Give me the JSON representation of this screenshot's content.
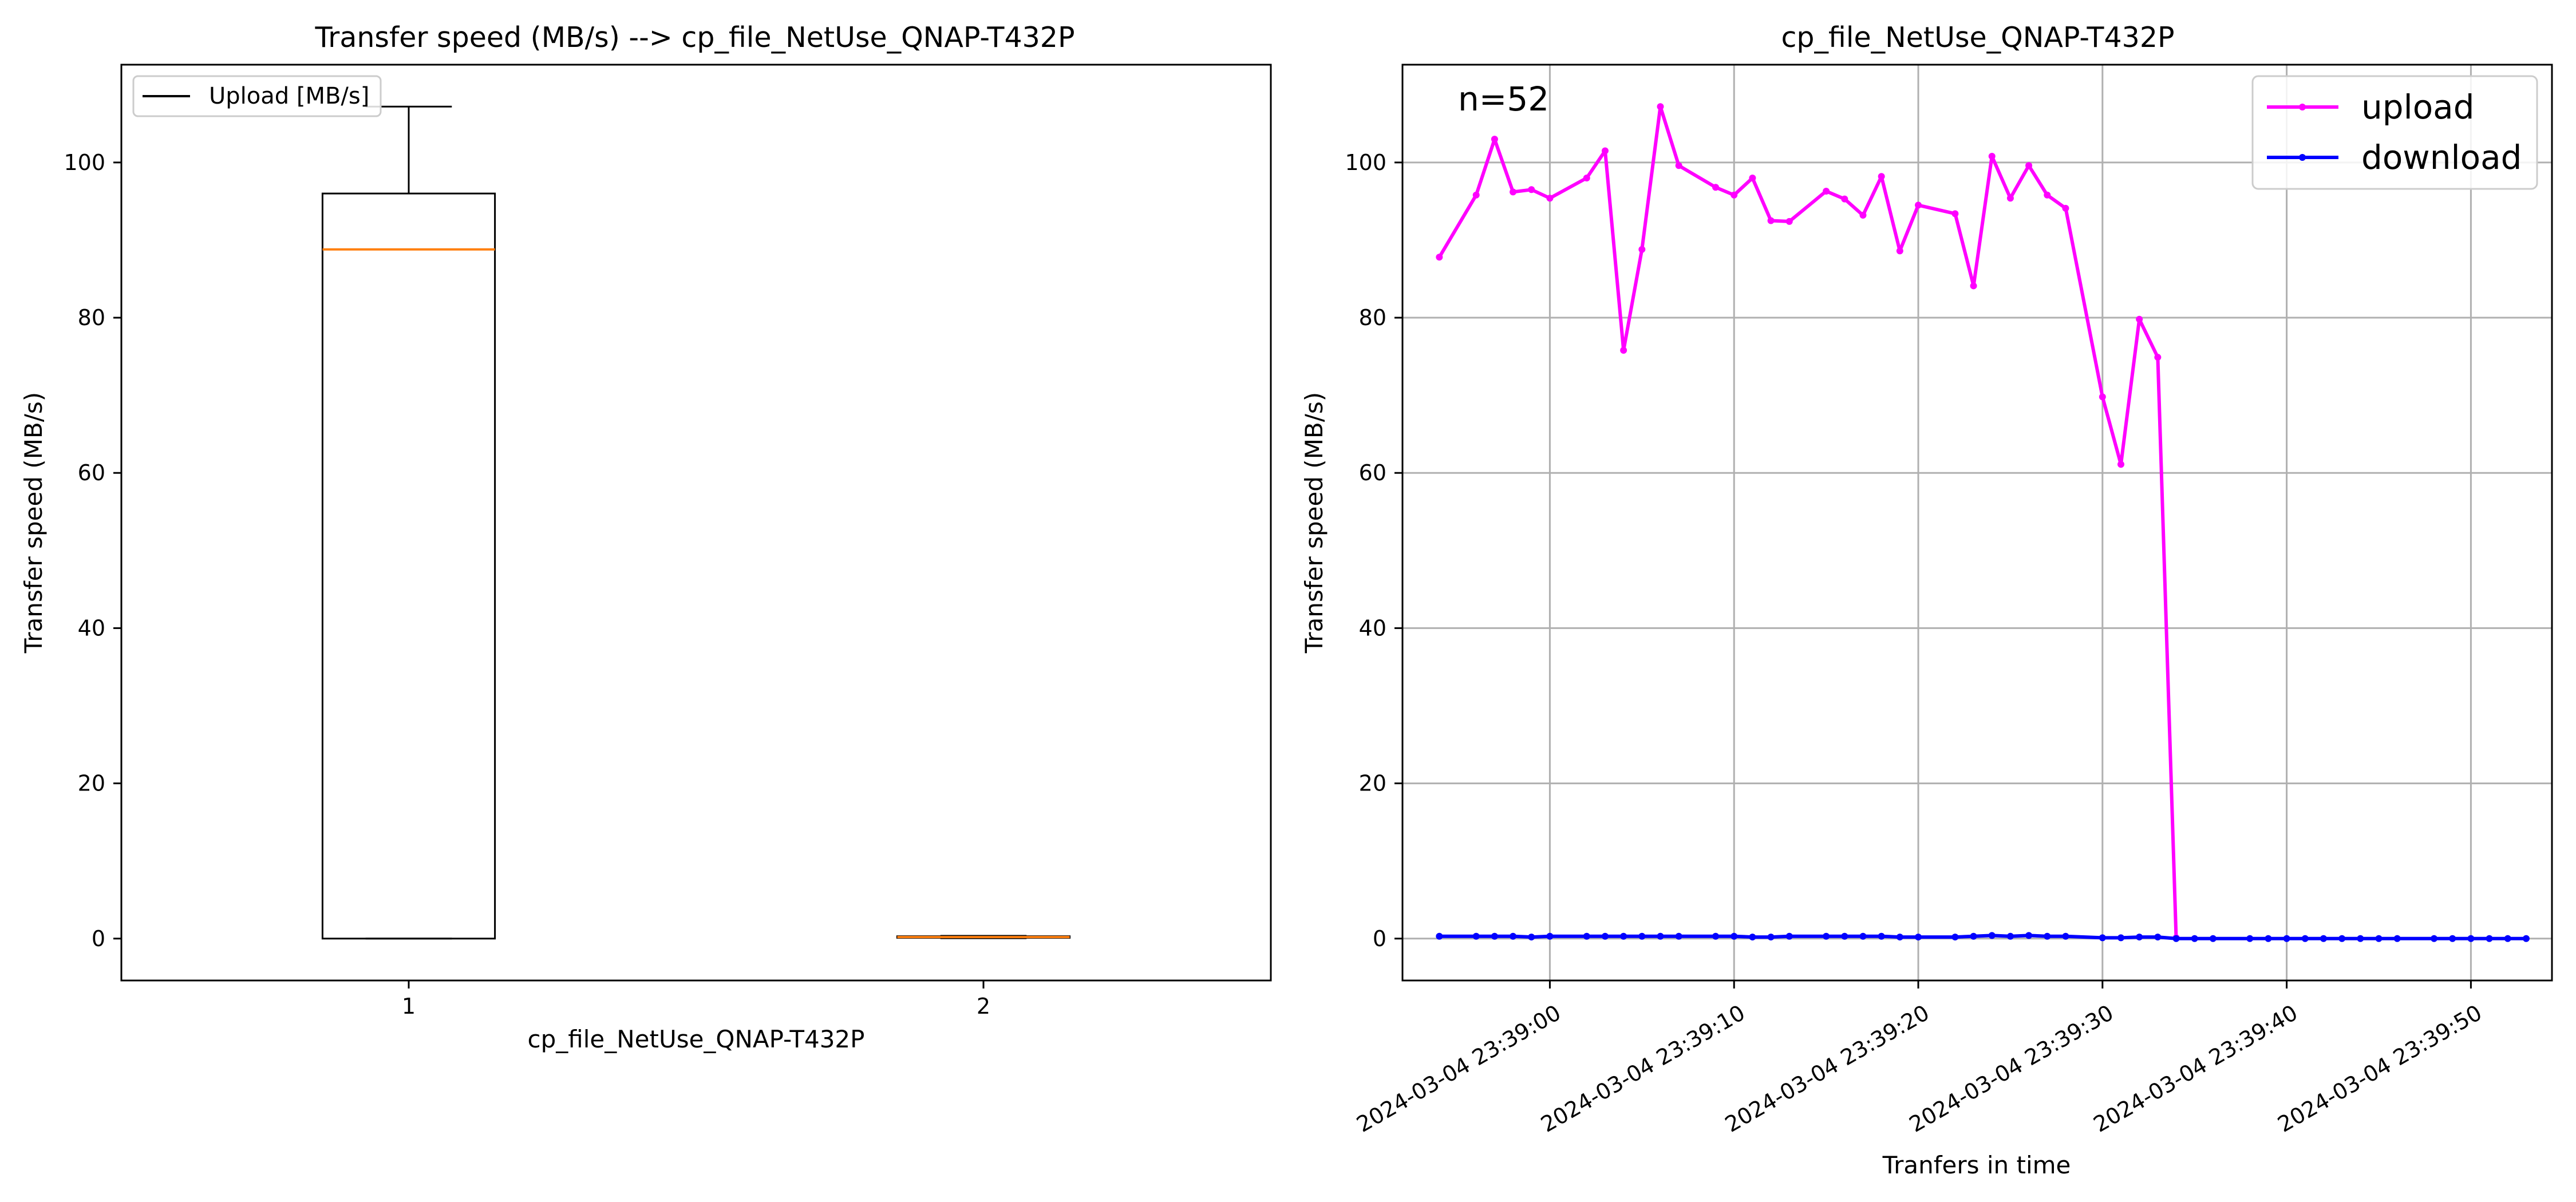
{
  "figure": {
    "background": "#ffffff"
  },
  "chart_data": [
    {
      "type": "box",
      "title": "Transfer speed (MB/s) --> cp_file_NetUse_QNAP-T432P",
      "xlabel": "cp_file_NetUse_QNAP-T432P",
      "ylabel": "Transfer speed (MB/s)",
      "categories": [
        "1",
        "2"
      ],
      "ylim": [
        -5.4,
        112.6
      ],
      "yticks": [
        0,
        20,
        40,
        60,
        80,
        100
      ],
      "ytick_labels": [
        "0",
        "20",
        "40",
        "60",
        "80",
        "100"
      ],
      "legend": {
        "placement": "upper-left",
        "entries": [
          "Upload [MB/s]"
        ]
      },
      "grid": false,
      "boxes": [
        {
          "category": "1",
          "whisker_low": 0,
          "q1": 0,
          "median": 88.8,
          "q3": 96.0,
          "whisker_high": 107.2
        },
        {
          "category": "2",
          "whisker_low": 0.05,
          "q1": 0.1,
          "median": 0.2,
          "q3": 0.3,
          "whisker_high": 0.35
        }
      ],
      "colors": {
        "box": "#000000",
        "median": "#ff7f0e"
      }
    },
    {
      "type": "line",
      "title": "cp_file_NetUse_QNAP-T432P",
      "xlabel": "Tranfers in time",
      "ylabel": "Transfer speed (MB/s)",
      "annotation": "n=52",
      "grid": true,
      "xlim": [
        "2024-03-04 23:38:52",
        "2024-03-04 23:39:54.4"
      ],
      "ylim": [
        -5.4,
        112.6
      ],
      "xticks": [
        "2024-03-04 23:39:00",
        "2024-03-04 23:39:10",
        "2024-03-04 23:39:20",
        "2024-03-04 23:39:30",
        "2024-03-04 23:39:40",
        "2024-03-04 23:39:50"
      ],
      "xtick_labels": [
        "2024-03-04 23:39:00",
        "2024-03-04 23:39:10",
        "2024-03-04 23:39:20",
        "2024-03-04 23:39:30",
        "2024-03-04 23:39:40",
        "2024-03-04 23:39:50"
      ],
      "yticks": [
        0,
        20,
        40,
        60,
        80,
        100
      ],
      "ytick_labels": [
        "0",
        "20",
        "40",
        "60",
        "80",
        "100"
      ],
      "legend": {
        "placement": "upper-right"
      },
      "series": [
        {
          "name": "upload",
          "color": "#ff00ff",
          "points": [
            [
              "2024-03-04 23:38:54",
              87.8
            ],
            [
              "2024-03-04 23:38:56",
              95.8
            ],
            [
              "2024-03-04 23:38:57",
              103.0
            ],
            [
              "2024-03-04 23:38:58",
              96.2
            ],
            [
              "2024-03-04 23:38:59",
              96.5
            ],
            [
              "2024-03-04 23:39:00",
              95.4
            ],
            [
              "2024-03-04 23:39:02",
              98.0
            ],
            [
              "2024-03-04 23:39:03",
              101.5
            ],
            [
              "2024-03-04 23:39:04",
              75.8
            ],
            [
              "2024-03-04 23:39:05",
              88.8
            ],
            [
              "2024-03-04 23:39:06",
              107.2
            ],
            [
              "2024-03-04 23:39:07",
              99.6
            ],
            [
              "2024-03-04 23:39:09",
              96.8
            ],
            [
              "2024-03-04 23:39:10",
              95.8
            ],
            [
              "2024-03-04 23:39:11",
              98.0
            ],
            [
              "2024-03-04 23:39:12",
              92.5
            ],
            [
              "2024-03-04 23:39:13",
              92.4
            ],
            [
              "2024-03-04 23:39:15",
              96.3
            ],
            [
              "2024-03-04 23:39:16",
              95.3
            ],
            [
              "2024-03-04 23:39:17",
              93.2
            ],
            [
              "2024-03-04 23:39:18",
              98.2
            ],
            [
              "2024-03-04 23:39:19",
              88.6
            ],
            [
              "2024-03-04 23:39:20",
              94.5
            ],
            [
              "2024-03-04 23:39:22",
              93.4
            ],
            [
              "2024-03-04 23:39:23",
              84.1
            ],
            [
              "2024-03-04 23:39:24",
              100.8
            ],
            [
              "2024-03-04 23:39:25",
              95.4
            ],
            [
              "2024-03-04 23:39:26",
              99.6
            ],
            [
              "2024-03-04 23:39:27",
              95.8
            ],
            [
              "2024-03-04 23:39:28",
              94.1
            ],
            [
              "2024-03-04 23:39:30",
              69.8
            ],
            [
              "2024-03-04 23:39:31",
              61.1
            ],
            [
              "2024-03-04 23:39:32",
              79.8
            ],
            [
              "2024-03-04 23:39:33",
              74.9
            ],
            [
              "2024-03-04 23:39:34",
              0.1
            ]
          ]
        },
        {
          "name": "download",
          "color": "#0000ff",
          "points": [
            [
              "2024-03-04 23:38:54",
              0.3
            ],
            [
              "2024-03-04 23:38:56",
              0.3
            ],
            [
              "2024-03-04 23:38:57",
              0.3
            ],
            [
              "2024-03-04 23:38:58",
              0.3
            ],
            [
              "2024-03-04 23:38:59",
              0.2
            ],
            [
              "2024-03-04 23:39:00",
              0.3
            ],
            [
              "2024-03-04 23:39:02",
              0.3
            ],
            [
              "2024-03-04 23:39:03",
              0.3
            ],
            [
              "2024-03-04 23:39:04",
              0.3
            ],
            [
              "2024-03-04 23:39:05",
              0.3
            ],
            [
              "2024-03-04 23:39:06",
              0.3
            ],
            [
              "2024-03-04 23:39:07",
              0.3
            ],
            [
              "2024-03-04 23:39:09",
              0.3
            ],
            [
              "2024-03-04 23:39:10",
              0.3
            ],
            [
              "2024-03-04 23:39:11",
              0.2
            ],
            [
              "2024-03-04 23:39:12",
              0.2
            ],
            [
              "2024-03-04 23:39:13",
              0.3
            ],
            [
              "2024-03-04 23:39:15",
              0.3
            ],
            [
              "2024-03-04 23:39:16",
              0.3
            ],
            [
              "2024-03-04 23:39:17",
              0.3
            ],
            [
              "2024-03-04 23:39:18",
              0.3
            ],
            [
              "2024-03-04 23:39:19",
              0.2
            ],
            [
              "2024-03-04 23:39:20",
              0.2
            ],
            [
              "2024-03-04 23:39:22",
              0.2
            ],
            [
              "2024-03-04 23:39:23",
              0.3
            ],
            [
              "2024-03-04 23:39:24",
              0.4
            ],
            [
              "2024-03-04 23:39:25",
              0.3
            ],
            [
              "2024-03-04 23:39:26",
              0.4
            ],
            [
              "2024-03-04 23:39:27",
              0.3
            ],
            [
              "2024-03-04 23:39:28",
              0.3
            ],
            [
              "2024-03-04 23:39:30",
              0.1
            ],
            [
              "2024-03-04 23:39:31",
              0.1
            ],
            [
              "2024-03-04 23:39:32",
              0.2
            ],
            [
              "2024-03-04 23:39:33",
              0.2
            ],
            [
              "2024-03-04 23:39:34",
              0.0
            ],
            [
              "2024-03-04 23:39:35",
              0.0
            ],
            [
              "2024-03-04 23:39:36",
              0.0
            ],
            [
              "2024-03-04 23:39:38",
              0.0
            ],
            [
              "2024-03-04 23:39:39",
              0.0
            ],
            [
              "2024-03-04 23:39:40",
              0.0
            ],
            [
              "2024-03-04 23:39:41",
              0.0
            ],
            [
              "2024-03-04 23:39:42",
              0.0
            ],
            [
              "2024-03-04 23:39:43",
              0.0
            ],
            [
              "2024-03-04 23:39:44",
              0.0
            ],
            [
              "2024-03-04 23:39:45",
              0.0
            ],
            [
              "2024-03-04 23:39:46",
              0.0
            ],
            [
              "2024-03-04 23:39:48",
              0.0
            ],
            [
              "2024-03-04 23:39:49",
              0.0
            ],
            [
              "2024-03-04 23:39:50",
              0.0
            ],
            [
              "2024-03-04 23:39:51",
              0.0
            ],
            [
              "2024-03-04 23:39:52",
              0.0
            ],
            [
              "2024-03-04 23:39:53",
              0.0
            ]
          ]
        }
      ]
    }
  ]
}
